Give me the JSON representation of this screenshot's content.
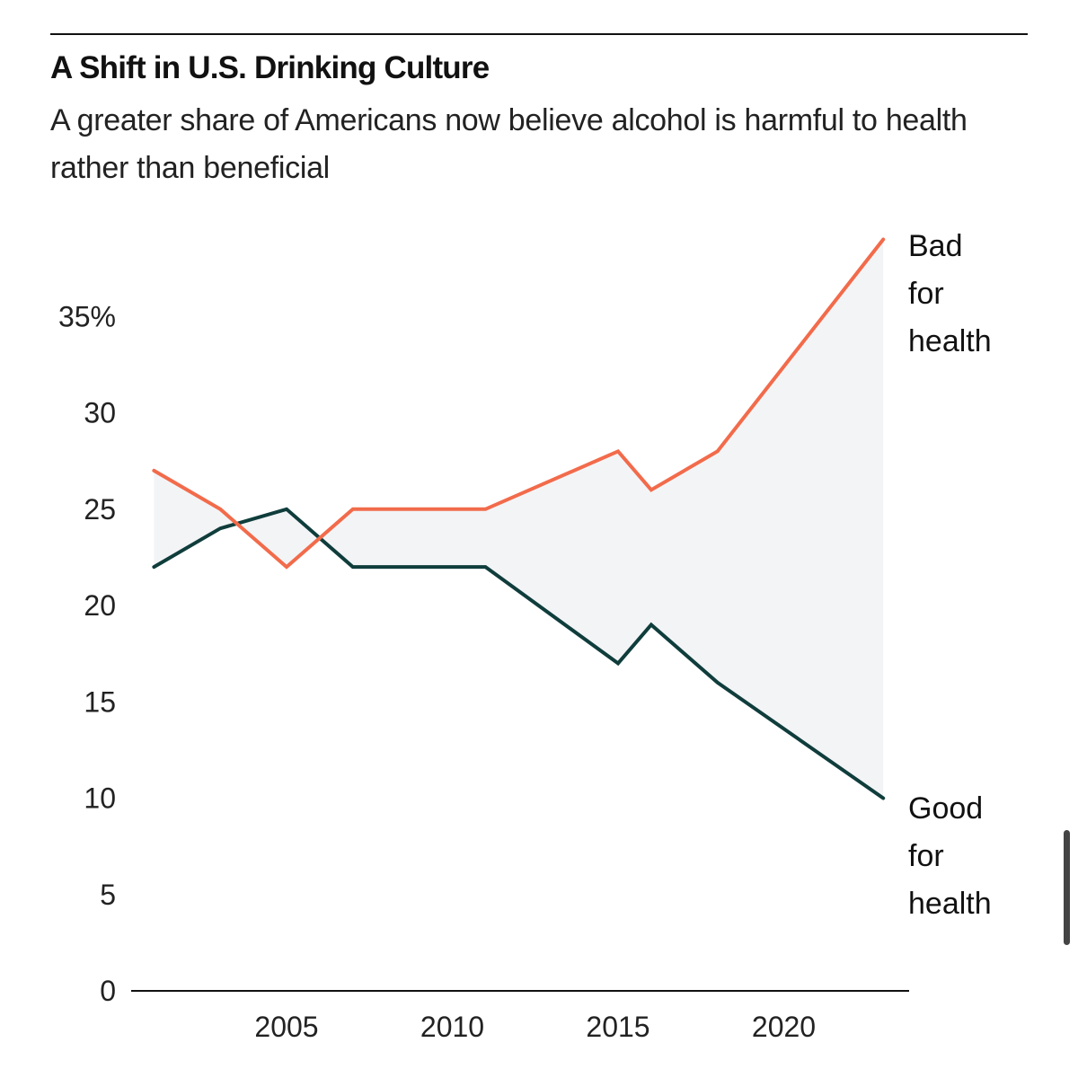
{
  "header": {
    "title": "A Shift in U.S. Drinking Culture",
    "subtitle": "A greater share of Americans now believe alcohol is harmful to health rather than beneficial"
  },
  "colors": {
    "bad": "#f26b4b",
    "good": "#0f3d3c",
    "gap_fill": "#f3f4f6",
    "axis": "#111111"
  },
  "chart_data": {
    "type": "line",
    "title": "A Shift in U.S. Drinking Culture",
    "subtitle": "A greater share of Americans now believe alcohol is harmful to health rather than beneficial",
    "xlabel": "",
    "ylabel": "",
    "xlim": [
      2001,
      2023
    ],
    "ylim": [
      0,
      40
    ],
    "y_ticks": [
      0,
      5,
      10,
      15,
      20,
      25,
      30,
      35
    ],
    "y_tick_labels": [
      "0",
      "5",
      "10",
      "15",
      "20",
      "25",
      "30",
      "35%"
    ],
    "x_ticks": [
      2005,
      2010,
      2015,
      2020
    ],
    "x_tick_labels": [
      "2005",
      "2010",
      "2015",
      "2020"
    ],
    "grid": false,
    "legend": "inline labels at line ends",
    "shaded_gap_between_series": true,
    "series": [
      {
        "name": "Bad for health",
        "label_lines": [
          "Bad",
          "for",
          "health"
        ],
        "color": "#f26b4b",
        "x": [
          2001,
          2003,
          2005,
          2007,
          2011,
          2015,
          2016,
          2018,
          2023
        ],
        "values": [
          27,
          25,
          22,
          25,
          25,
          28,
          26,
          28,
          39
        ]
      },
      {
        "name": "Good for health",
        "label_lines": [
          "Good",
          "for",
          "health"
        ],
        "color": "#0f3d3c",
        "x": [
          2001,
          2003,
          2005,
          2007,
          2011,
          2015,
          2016,
          2018,
          2023
        ],
        "values": [
          22,
          24,
          25,
          22,
          22,
          17,
          19,
          16,
          10
        ]
      }
    ]
  }
}
